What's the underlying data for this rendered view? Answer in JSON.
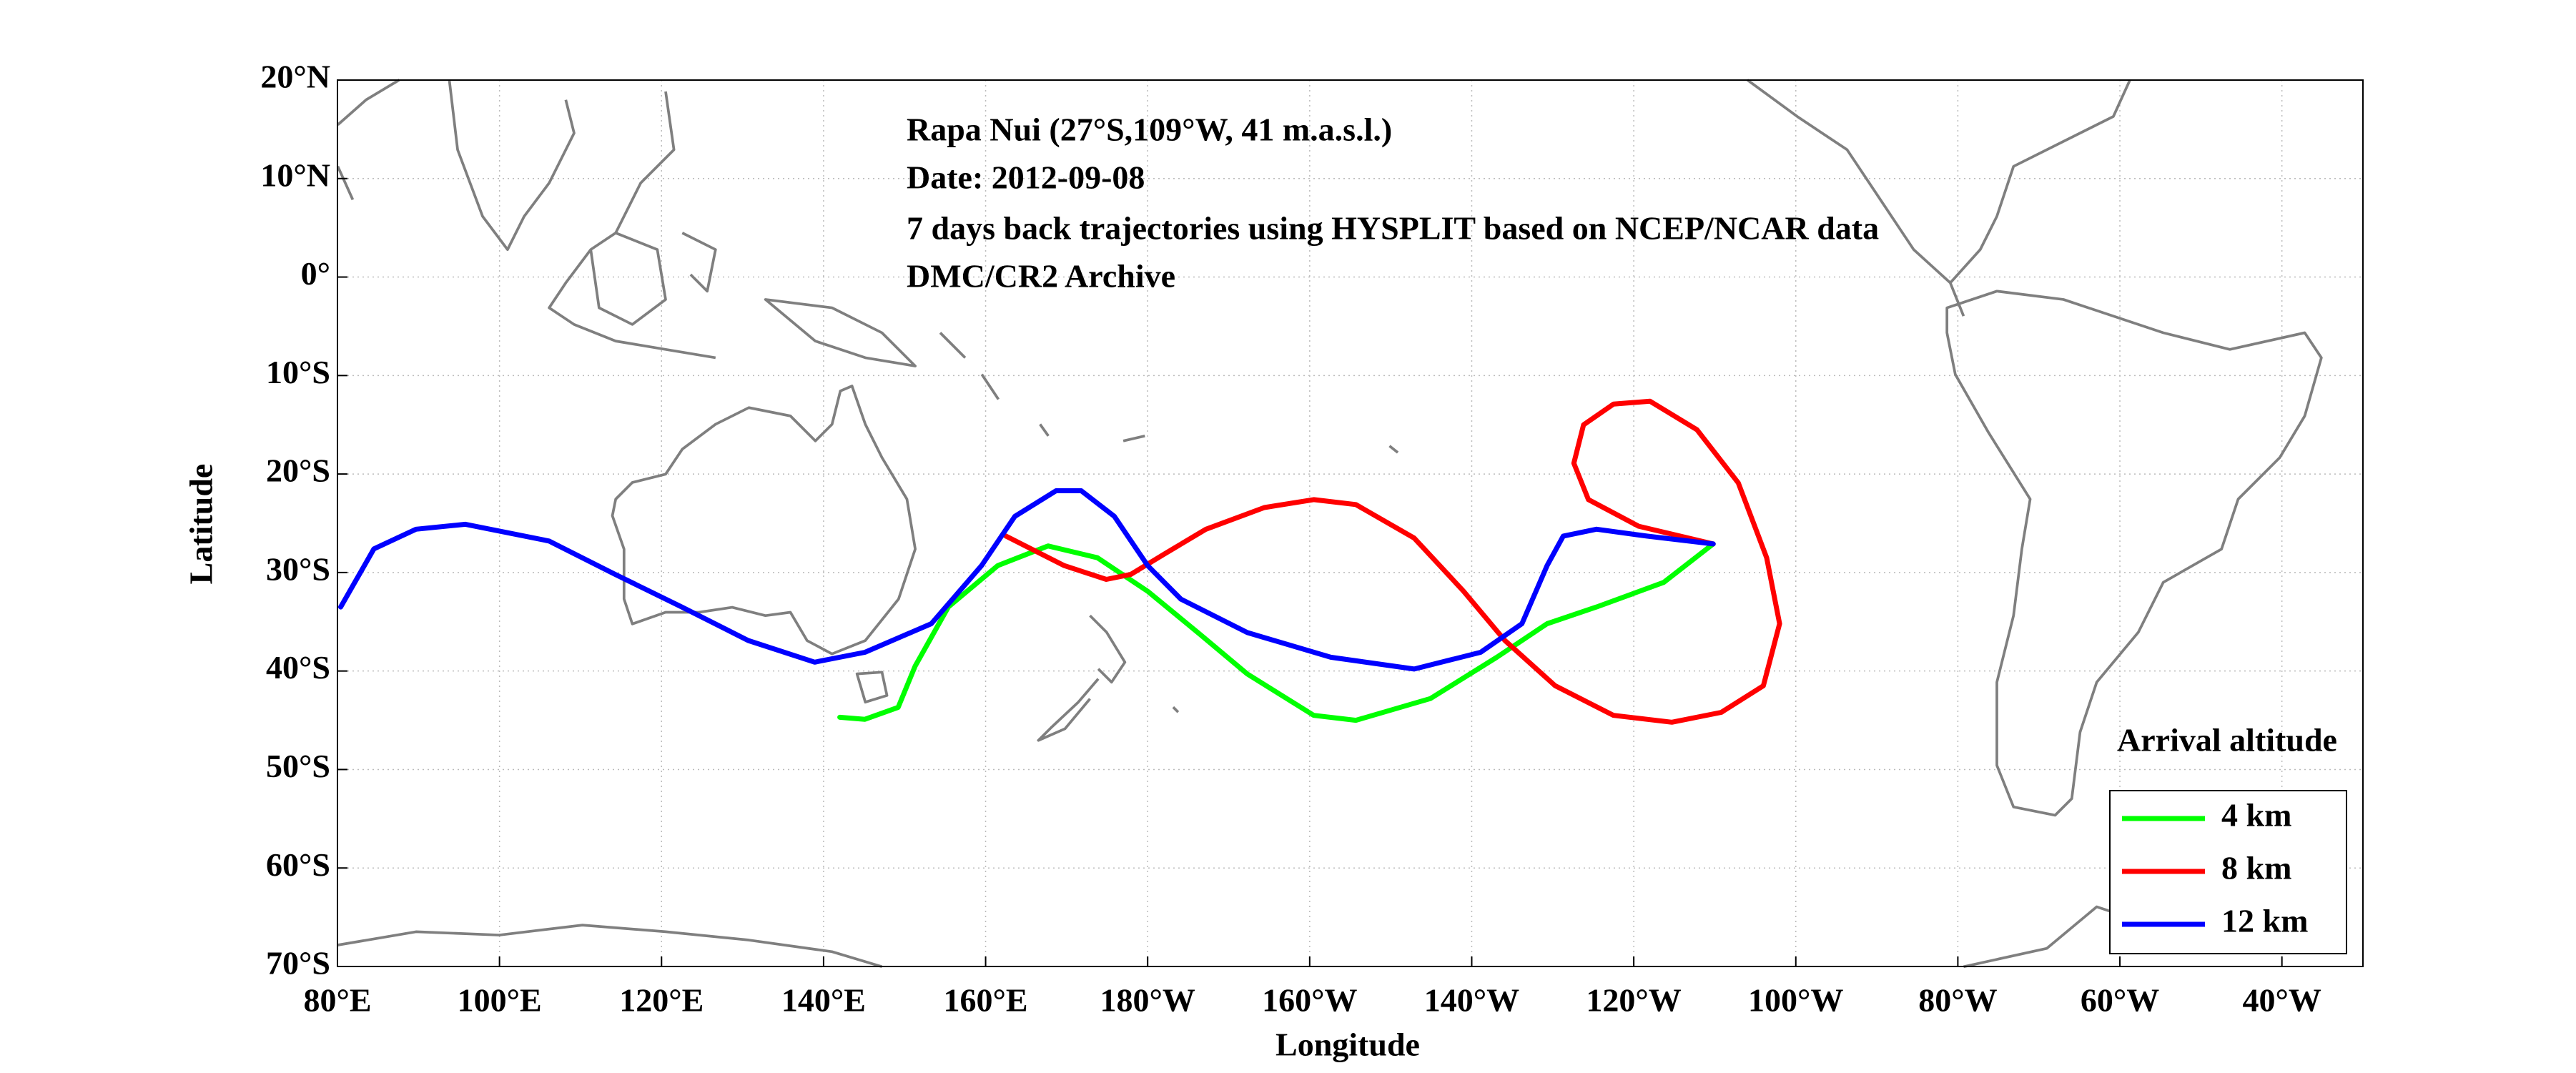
{
  "chart_data": {
    "type": "line",
    "annotations": [
      "Rapa Nui (27°S,109°W, 41 m.a.s.l.)",
      "Date: 2012-09-08",
      "7 days back trajectories using HYSPLIT based on NCEP/NCAR data",
      "DMC/CR2 Archive"
    ],
    "x_label": "Longitude",
    "y_label": "Latitude",
    "legend_title": "Arrival altitude",
    "legend": "lower right",
    "grid": true,
    "xlim": [
      80,
      330
    ],
    "ylim": [
      -70,
      20
    ],
    "xticks": [
      {
        "value": 80,
        "label": "80°E"
      },
      {
        "value": 100,
        "label": "100°E"
      },
      {
        "value": 120,
        "label": "120°E"
      },
      {
        "value": 140,
        "label": "140°E"
      },
      {
        "value": 160,
        "label": "160°E"
      },
      {
        "value": 180,
        "label": "180°W"
      },
      {
        "value": 200,
        "label": "160°W"
      },
      {
        "value": 220,
        "label": "140°W"
      },
      {
        "value": 240,
        "label": "120°W"
      },
      {
        "value": 260,
        "label": "100°W"
      },
      {
        "value": 280,
        "label": "80°W"
      },
      {
        "value": 300,
        "label": "60°W"
      },
      {
        "value": 320,
        "label": "40°W"
      }
    ],
    "yticks": [
      {
        "value": 20,
        "label": "20°N"
      },
      {
        "value": 10,
        "label": "10°N"
      },
      {
        "value": 0,
        "label": "0°"
      },
      {
        "value": -10,
        "label": "10°S"
      },
      {
        "value": -20,
        "label": "20°S"
      },
      {
        "value": -30,
        "label": "30°S"
      },
      {
        "value": -40,
        "label": "40°S"
      },
      {
        "value": -50,
        "label": "50°S"
      },
      {
        "value": -60,
        "label": "60°S"
      },
      {
        "value": -70,
        "label": "70°S"
      }
    ],
    "series": [
      {
        "name": "4 km",
        "color": "#00ff00",
        "x": [
          249.8,
          243.7,
          235.4,
          229.3,
          223.1,
          214.9,
          205.7,
          200.5,
          192.3,
          186.2,
          180.0,
          173.8,
          167.7,
          161.5,
          155.4,
          151.3,
          149.2,
          145.1,
          142.0
        ],
        "values": [
          -27.1,
          -31.0,
          -33.5,
          -35.2,
          -38.6,
          -42.8,
          -45.0,
          -44.5,
          -40.3,
          -36.1,
          -31.9,
          -28.5,
          -27.3,
          -29.3,
          -33.5,
          -39.5,
          -43.7,
          -44.9,
          -44.7
        ]
      },
      {
        "name": "8 km",
        "color": "#ff0000",
        "x": [
          249.8,
          240.6,
          234.4,
          232.6,
          233.8,
          237.5,
          242.0,
          247.8,
          252.9,
          256.4,
          258.0,
          256.0,
          250.8,
          244.7,
          237.5,
          230.3,
          224.1,
          219.0,
          212.9,
          205.7,
          200.5,
          194.4,
          187.2,
          182.1,
          177.9,
          174.9,
          169.7,
          162.5
        ],
        "values": [
          -27.1,
          -25.3,
          -22.6,
          -18.9,
          -15.0,
          -12.9,
          -12.6,
          -15.5,
          -20.9,
          -28.5,
          -35.2,
          -41.5,
          -44.2,
          -45.2,
          -44.5,
          -41.5,
          -36.9,
          -31.9,
          -26.5,
          -23.1,
          -22.6,
          -23.4,
          -25.6,
          -28.1,
          -30.2,
          -30.7,
          -29.3,
          -26.3
        ]
      },
      {
        "name": "12 km",
        "color": "#0000ff",
        "x": [
          249.8,
          241.6,
          235.4,
          231.3,
          229.3,
          226.2,
          221.1,
          212.9,
          202.6,
          192.3,
          184.1,
          180.0,
          175.9,
          171.8,
          168.7,
          163.6,
          159.5,
          153.3,
          145.1,
          138.9,
          130.7,
          122.5,
          114.3,
          106.1,
          95.8,
          89.7,
          84.5,
          80.4
        ],
        "values": [
          -27.1,
          -26.3,
          -25.6,
          -26.3,
          -29.3,
          -35.2,
          -38.1,
          -39.8,
          -38.6,
          -36.1,
          -32.7,
          -29.3,
          -24.3,
          -21.7,
          -21.7,
          -24.3,
          -29.3,
          -35.2,
          -38.1,
          -39.1,
          -36.9,
          -33.5,
          -30.2,
          -26.8,
          -25.1,
          -25.6,
          -27.6,
          -33.5
        ]
      }
    ]
  }
}
